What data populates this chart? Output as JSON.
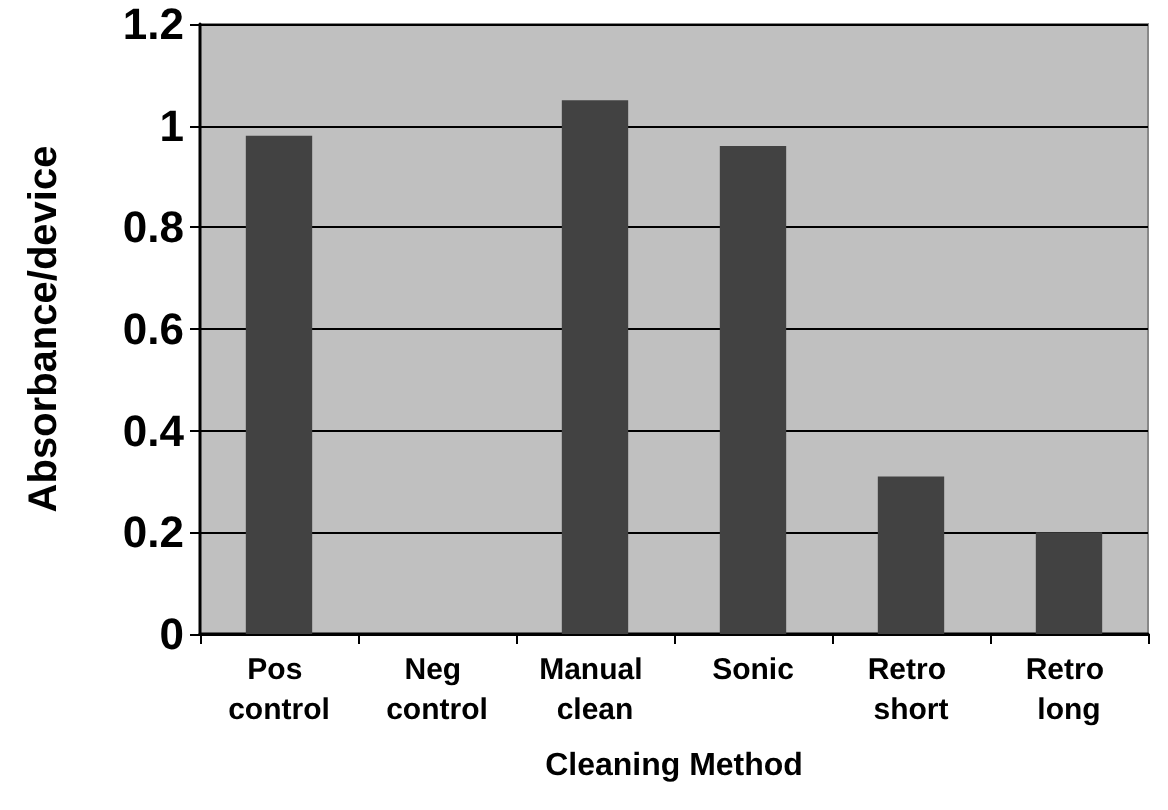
{
  "chart_data": {
    "type": "bar",
    "xlabel": "Cleaning Method",
    "ylabel": "Absorbance/device",
    "categories": [
      "Pos control",
      "Neg control",
      "Manual clean",
      "Sonic",
      "Retro short",
      "Retro long"
    ],
    "values": [
      0.98,
      0,
      1.05,
      0.96,
      0.31,
      0.2
    ],
    "color": "#424242",
    "ylim": [
      0,
      1.2
    ],
    "yticks": [
      0,
      0.2,
      0.4,
      0.6,
      0.8,
      1,
      1.2
    ],
    "grid": "y"
  }
}
